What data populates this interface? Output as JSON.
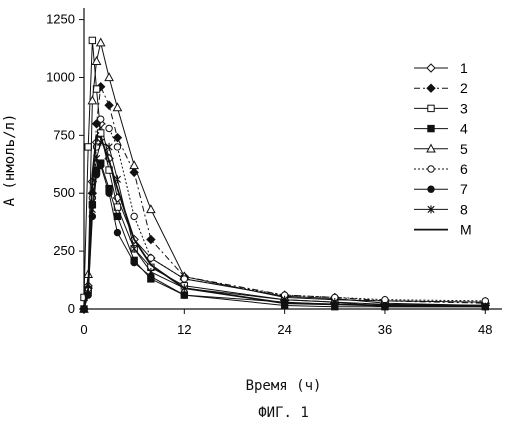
{
  "chart_data": {
    "type": "line",
    "xlabel": "Время (ч)",
    "ylabel": "A (нмоль/л)",
    "caption": "ФИГ. 1",
    "xlim": [
      0,
      50
    ],
    "ylim": [
      0,
      1300
    ],
    "xticks": [
      0,
      12,
      24,
      36,
      48
    ],
    "yticks": [
      0,
      250,
      500,
      750,
      1000,
      1250
    ],
    "grid": false,
    "legend_position": "right",
    "series": [
      {
        "name": "1",
        "marker": "diamond-open",
        "dash": "solid",
        "x": [
          0,
          0.5,
          1,
          1.5,
          2,
          3,
          4,
          6,
          8,
          12,
          24,
          30,
          36,
          48
        ],
        "y": [
          0,
          100,
          550,
          720,
          800,
          650,
          480,
          300,
          220,
          130,
          55,
          45,
          25,
          15
        ]
      },
      {
        "name": "2",
        "marker": "diamond-filled",
        "dash": "dashdot",
        "x": [
          0,
          0.5,
          1,
          1.5,
          2,
          3,
          4,
          6,
          8,
          12,
          24,
          30,
          36,
          48
        ],
        "y": [
          0,
          90,
          500,
          800,
          960,
          880,
          740,
          590,
          300,
          140,
          60,
          50,
          35,
          25
        ]
      },
      {
        "name": "3",
        "marker": "square-open",
        "dash": "solid",
        "x": [
          0,
          0.5,
          1,
          1.5,
          2,
          3,
          4,
          6,
          8,
          12,
          24,
          30,
          36,
          48
        ],
        "y": [
          50,
          700,
          1160,
          950,
          760,
          600,
          440,
          260,
          180,
          100,
          40,
          30,
          20,
          15
        ]
      },
      {
        "name": "4",
        "marker": "square-filled",
        "dash": "solid",
        "x": [
          0,
          0.5,
          1,
          1.5,
          2,
          3,
          4,
          6,
          8,
          12,
          24,
          30,
          36,
          48
        ],
        "y": [
          0,
          80,
          450,
          600,
          630,
          520,
          400,
          210,
          130,
          60,
          15,
          10,
          10,
          10
        ]
      },
      {
        "name": "5",
        "marker": "triangle-open",
        "dash": "solid",
        "x": [
          0,
          0.5,
          1,
          1.5,
          2,
          3,
          4,
          6,
          8,
          12,
          24,
          30,
          36,
          48
        ],
        "y": [
          0,
          150,
          900,
          1070,
          1150,
          1000,
          870,
          620,
          430,
          140,
          50,
          40,
          35,
          30
        ]
      },
      {
        "name": "6",
        "marker": "circle-open",
        "dash": "dotted",
        "x": [
          0,
          0.5,
          1,
          1.5,
          2,
          3,
          4,
          6,
          8,
          12,
          24,
          30,
          36,
          48
        ],
        "y": [
          0,
          80,
          480,
          700,
          820,
          780,
          700,
          400,
          220,
          130,
          60,
          50,
          40,
          35
        ]
      },
      {
        "name": "7",
        "marker": "circle-filled",
        "dash": "solid",
        "x": [
          0,
          0.5,
          1,
          1.5,
          2,
          3,
          4,
          6,
          8,
          12,
          24,
          30,
          36,
          48
        ],
        "y": [
          0,
          60,
          400,
          580,
          620,
          500,
          330,
          200,
          140,
          60,
          30,
          20,
          15,
          10
        ]
      },
      {
        "name": "8",
        "marker": "star",
        "dash": "solid",
        "x": [
          0,
          0.5,
          1,
          1.5,
          2,
          3,
          4,
          6,
          8,
          12,
          24,
          30,
          36,
          48
        ],
        "y": [
          0,
          70,
          430,
          650,
          720,
          700,
          560,
          260,
          160,
          90,
          40,
          30,
          10,
          10
        ]
      },
      {
        "name": "M",
        "marker": "none",
        "dash": "solid",
        "bold": true,
        "x": [
          0,
          0.5,
          1,
          1.5,
          2,
          3,
          4,
          6,
          8,
          12,
          24,
          30,
          36,
          48
        ],
        "y": [
          0,
          90,
          580,
          750,
          740,
          640,
          520,
          300,
          190,
          90,
          25,
          20,
          15,
          15
        ]
      }
    ]
  }
}
